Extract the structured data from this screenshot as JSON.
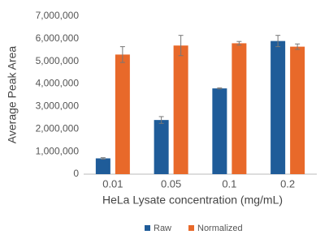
{
  "chart_data": {
    "type": "bar",
    "x_label": "HeLa Lysate concentration (mg/mL)",
    "y_label": "Average Peak Area",
    "categories": [
      "0.01",
      "0.05",
      "0.1",
      "0.2"
    ],
    "series": [
      {
        "name": "Raw",
        "color": "#1f5c99",
        "values": [
          700000,
          2400000,
          3800000,
          5900000
        ],
        "errors": [
          30000,
          150000,
          20000,
          250000
        ]
      },
      {
        "name": "Normalized",
        "color": "#e8692a",
        "values": [
          5300000,
          5700000,
          5800000,
          5650000
        ],
        "errors": [
          350000,
          450000,
          80000,
          120000
        ]
      }
    ],
    "ylim": [
      0,
      7000000
    ],
    "yticks": [
      0,
      {
        "value": 1000000,
        "label": "1,000,000"
      },
      {
        "value": 2000000,
        "label": "2,000,000"
      },
      {
        "value": 3000000,
        "label": "3,000,000"
      },
      {
        "value": 4000000,
        "label": "4,000,000"
      },
      {
        "value": 5000000,
        "label": "5,000,000"
      },
      {
        "value": 6000000,
        "label": "6,000,000"
      },
      {
        "value": 7000000,
        "label": "7,000,000"
      }
    ],
    "grid": false,
    "legend": "bottom"
  }
}
